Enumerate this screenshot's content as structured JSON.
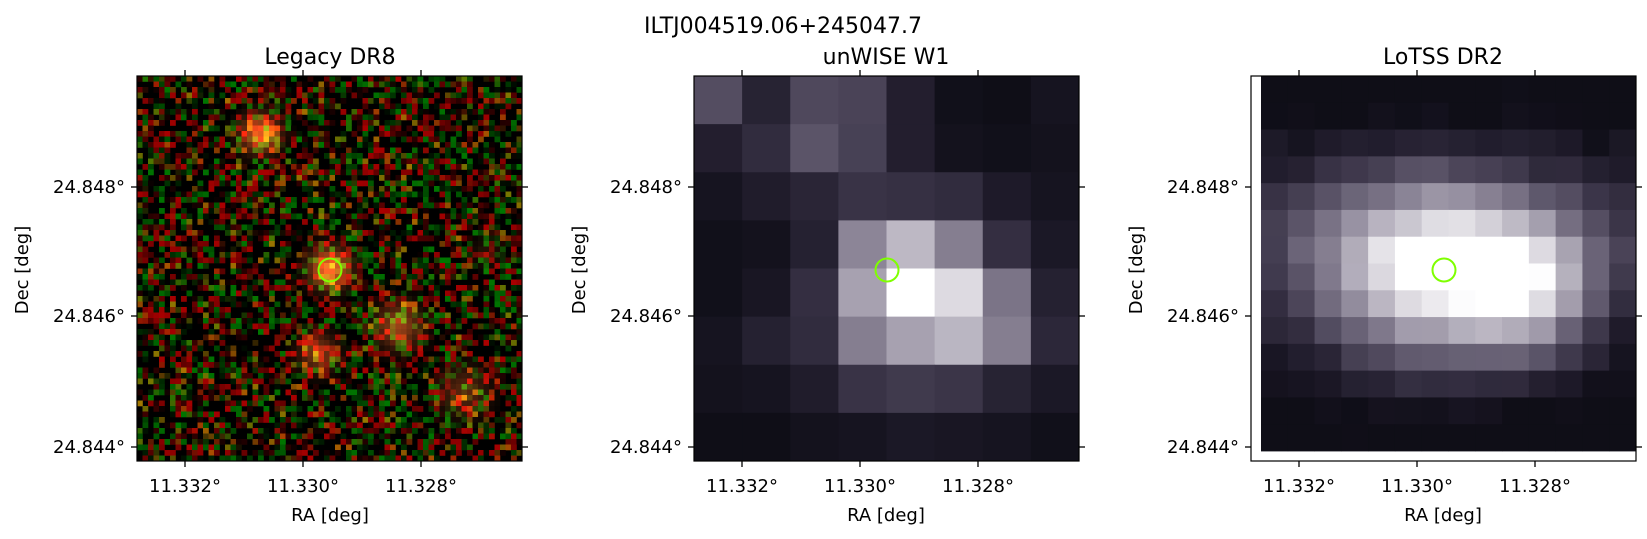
{
  "figure": {
    "title": "ILTJ004519.06+245047.7"
  },
  "panels": [
    {
      "title": "Legacy DR8",
      "xlabel": "RA [deg]",
      "ylabel": "Dec [deg]",
      "xticks": [
        "11.332°",
        "11.330°",
        "11.328°"
      ],
      "yticks": [
        "24.848°",
        "24.846°",
        "24.844°"
      ],
      "style": "rgb-noise"
    },
    {
      "title": "unWISE W1",
      "xlabel": "RA [deg]",
      "ylabel": "Dec [deg]",
      "xticks": [
        "11.332°",
        "11.330°",
        "11.328°"
      ],
      "yticks": [
        "24.848°",
        "24.846°",
        "24.844°"
      ],
      "style": "coarse-bone"
    },
    {
      "title": "LoTSS DR2",
      "xlabel": "RA [deg]",
      "ylabel": "Dec [deg]",
      "xticks": [
        "11.332°",
        "11.330°",
        "11.328°"
      ],
      "yticks": [
        "24.848°",
        "24.846°",
        "24.844°"
      ],
      "style": "fine-bone"
    }
  ],
  "marker": {
    "color": "#7fff00",
    "shape": "circle"
  },
  "colors": {
    "legacy_source": "#d2351e",
    "bone_dark": "#0b0b10",
    "bone_light": "#ffffff"
  }
}
